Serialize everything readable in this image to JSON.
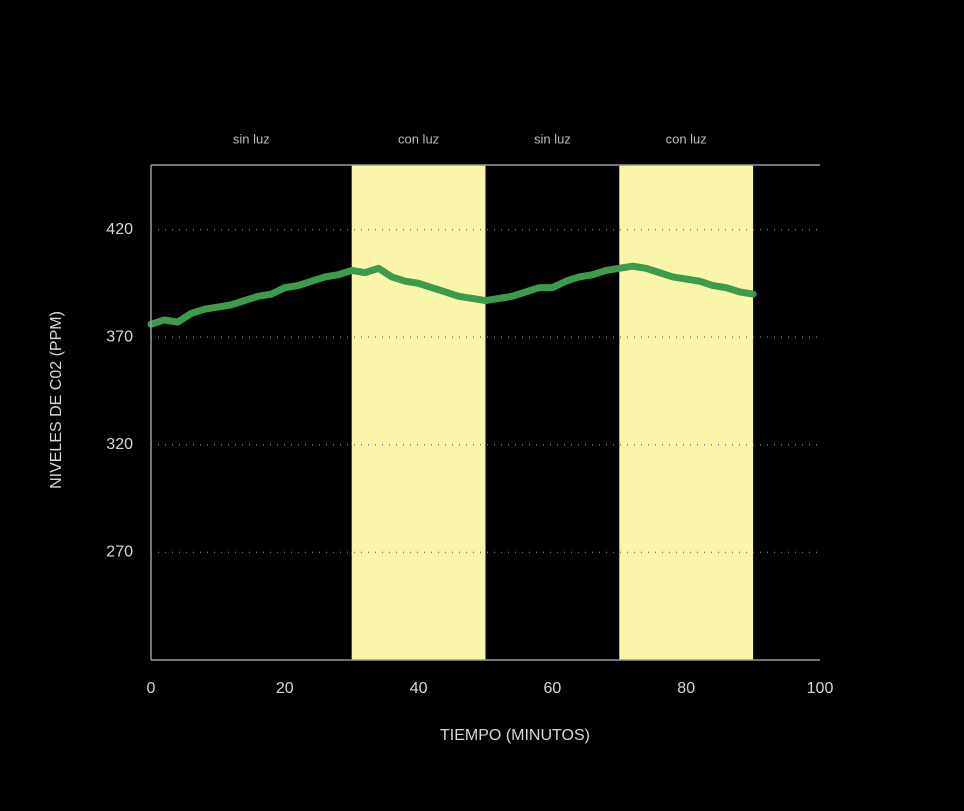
{
  "chart_data": {
    "type": "line",
    "x_label": "TIEMPO (MINUTOS)",
    "y_label": "NIVELES DE C02 (PPM)",
    "x": [
      0,
      2,
      4,
      6,
      8,
      10,
      12,
      14,
      16,
      18,
      20,
      22,
      24,
      26,
      28,
      30,
      32,
      34,
      36,
      38,
      40,
      42,
      44,
      46,
      48,
      50,
      52,
      54,
      56,
      58,
      60,
      62,
      64,
      66,
      68,
      70,
      72,
      74,
      76,
      78,
      80,
      82,
      84,
      86,
      88,
      90
    ],
    "series": [
      {
        "color": "#3d9b4c",
        "values": [
          376,
          378,
          377,
          381,
          383,
          384,
          385,
          387,
          389,
          390,
          393,
          394,
          396,
          398,
          399,
          401,
          400,
          402,
          398,
          396,
          395,
          393,
          391,
          389,
          388,
          387,
          388,
          389,
          391,
          393,
          393,
          396,
          398,
          399,
          401,
          402,
          403,
          402,
          400,
          398,
          397,
          396,
          394,
          393,
          391,
          390
        ]
      }
    ],
    "regions": [
      {
        "start": 0,
        "end": 30,
        "label": "sin luz",
        "shaded": false
      },
      {
        "start": 30,
        "end": 50,
        "label": "con luz",
        "shaded": true
      },
      {
        "start": 50,
        "end": 70,
        "label": "sin luz",
        "shaded": false
      },
      {
        "start": 70,
        "end": 90,
        "label": "con luz",
        "shaded": true
      }
    ],
    "shade_color": "#fbf6aa",
    "xlim": [
      0,
      100
    ],
    "xticks": [
      0,
      20,
      40,
      60,
      80,
      100
    ],
    "ylim": [
      220,
      450
    ],
    "yticks": [
      270,
      320,
      370,
      420
    ],
    "grid": true
  }
}
